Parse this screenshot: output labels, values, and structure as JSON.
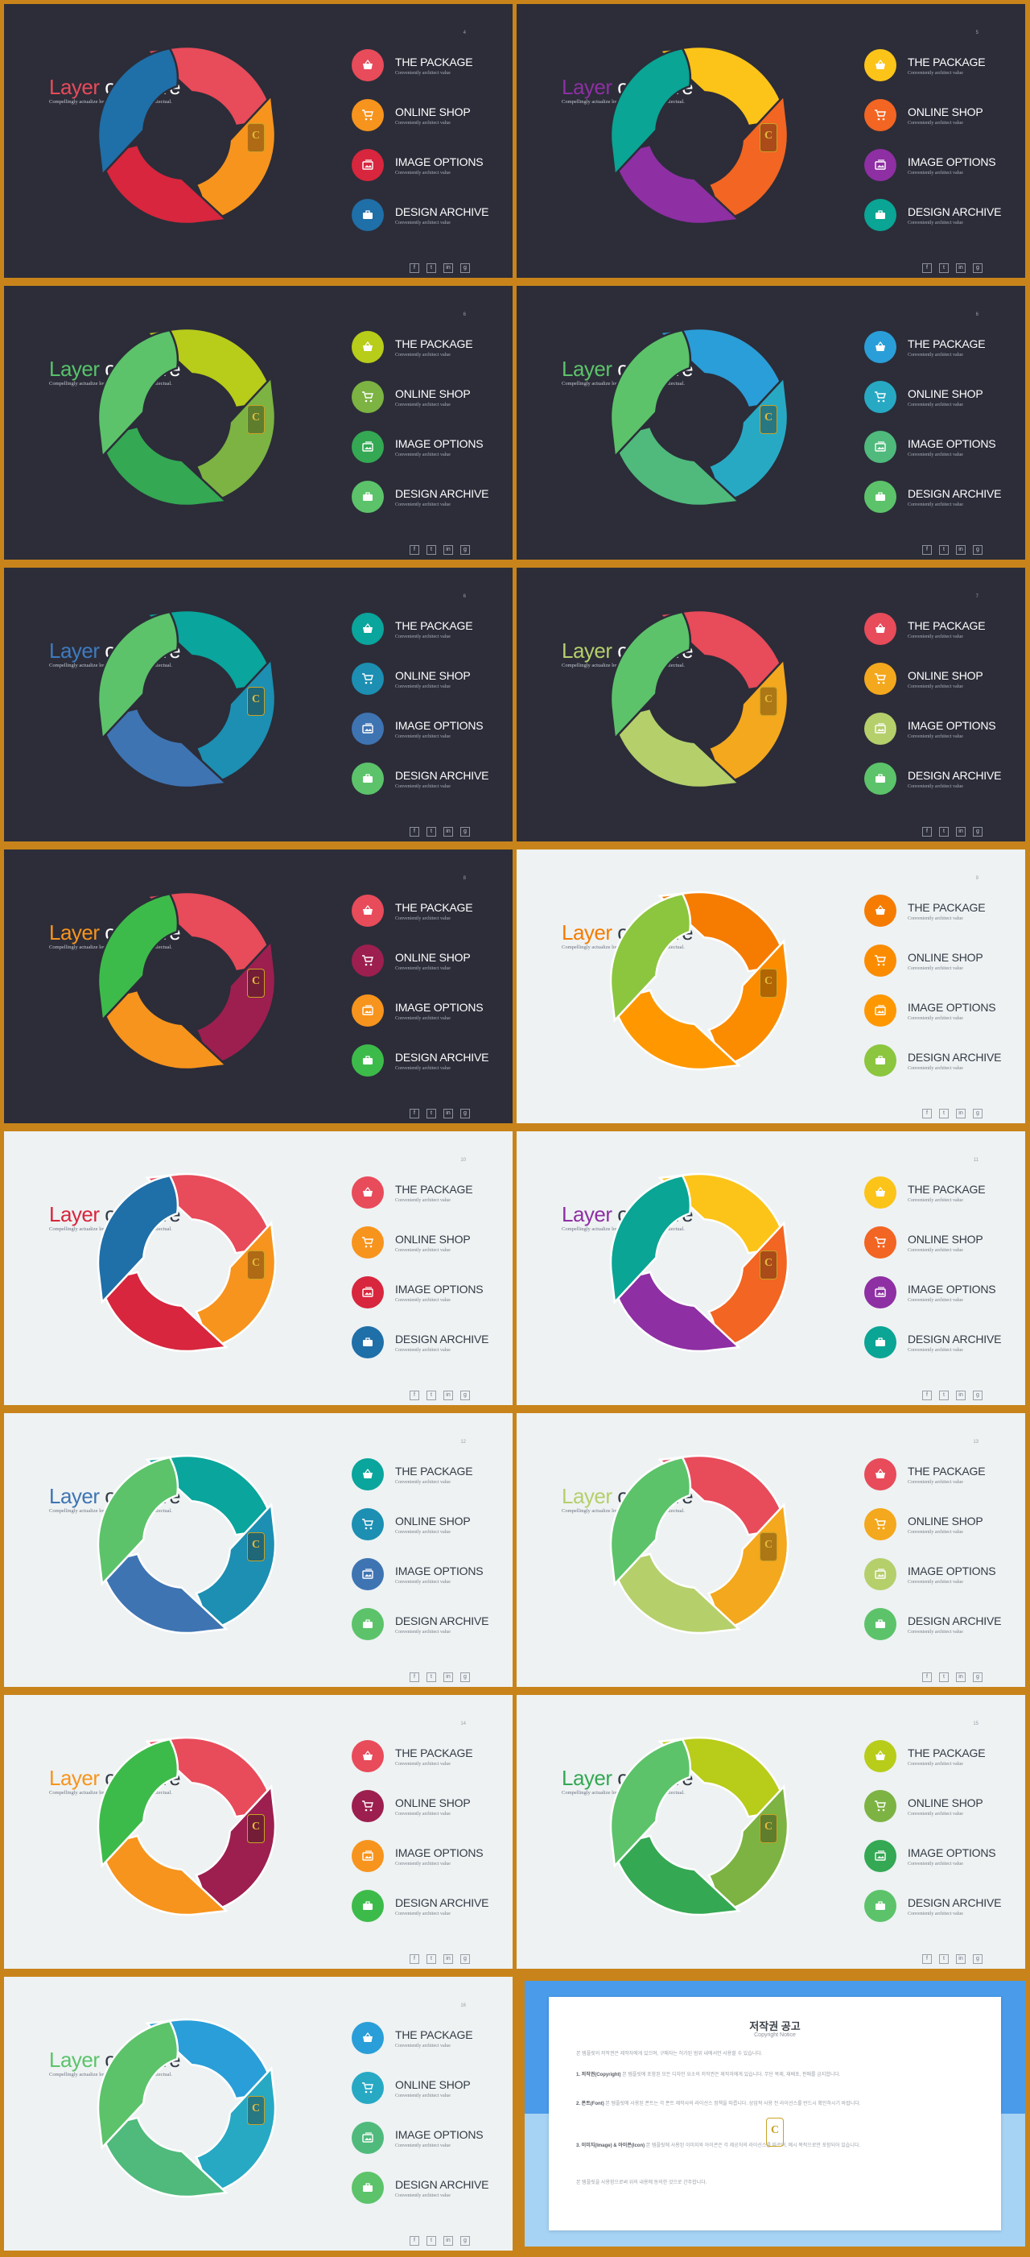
{
  "title_part1": "Layer",
  "title_part2": "of serive",
  "subtitle": "Compellingly actualize long-term high-impact intellectual.",
  "items": [
    {
      "label": "THE PACKAGE",
      "sub": "Conveniently architect value",
      "icon": "basket-icon"
    },
    {
      "label": "ONLINE SHOP",
      "sub": "Conveniently architect value",
      "icon": "cart-icon"
    },
    {
      "label": "IMAGE OPTIONS",
      "sub": "Conveniently architect value",
      "icon": "image-icon"
    },
    {
      "label": "DESIGN ARCHIVE",
      "sub": "Conveniently architect value",
      "icon": "briefcase-icon"
    }
  ],
  "social": [
    "f",
    "t",
    "in",
    "g"
  ],
  "badge": "C",
  "slides": [
    {
      "num": "4",
      "theme": "dark",
      "title_color": "#e84b5a",
      "colors": [
        "#e84b5a",
        "#f7941d",
        "#d7263d",
        "#1f6fa8"
      ]
    },
    {
      "num": "5",
      "theme": "dark",
      "title_color": "#8e2fa3",
      "colors": [
        "#fcc419",
        "#f26522",
        "#8e2fa3",
        "#0aa594"
      ]
    },
    {
      "num": "6",
      "theme": "dark",
      "title_color": "#57c26a",
      "colors": [
        "#b8cc1a",
        "#7cb342",
        "#34a853",
        "#5cc36a"
      ]
    },
    {
      "num": "6",
      "theme": "dark",
      "title_color": "#5cc36a",
      "colors": [
        "#2a9ed8",
        "#27a9c4",
        "#4fba7c",
        "#5cc36a"
      ]
    },
    {
      "num": "6",
      "theme": "dark",
      "title_color": "#3f7bbf",
      "colors": [
        "#0aa59c",
        "#1c8fb2",
        "#3f74b3",
        "#5cc36a"
      ]
    },
    {
      "num": "7",
      "theme": "dark",
      "title_color": "#b5cf6b",
      "colors": [
        "#e84b5a",
        "#f4a81d",
        "#b5cf6b",
        "#5cc36a"
      ]
    },
    {
      "num": "8",
      "theme": "dark",
      "title_color": "#f7941d",
      "colors": [
        "#e84b5a",
        "#9c1f4f",
        "#f7941d",
        "#3dbb4a"
      ]
    },
    {
      "num": "9",
      "theme": "light",
      "title_color": "#f57c00",
      "colors": [
        "#f57c00",
        "#fb8c00",
        "#ff9800",
        "#8bc63e"
      ]
    },
    {
      "num": "10",
      "theme": "light",
      "title_color": "#d7263d",
      "colors": [
        "#e84b5a",
        "#f7941d",
        "#d7263d",
        "#1f6fa8"
      ]
    },
    {
      "num": "11",
      "theme": "light",
      "title_color": "#8e2fa3",
      "colors": [
        "#fcc419",
        "#f26522",
        "#8e2fa3",
        "#0aa594"
      ]
    },
    {
      "num": "12",
      "theme": "light",
      "title_color": "#3f74b3",
      "colors": [
        "#0aa59c",
        "#1c8fb2",
        "#3f74b3",
        "#5cc36a"
      ]
    },
    {
      "num": "13",
      "theme": "light",
      "title_color": "#b5cf6b",
      "colors": [
        "#e84b5a",
        "#f4a81d",
        "#b5cf6b",
        "#5cc36a"
      ]
    },
    {
      "num": "14",
      "theme": "light",
      "title_color": "#f7941d",
      "colors": [
        "#e84b5a",
        "#9c1f4f",
        "#f7941d",
        "#3dbb4a"
      ]
    },
    {
      "num": "15",
      "theme": "light",
      "title_color": "#34a853",
      "colors": [
        "#b8cc1a",
        "#7cb342",
        "#34a853",
        "#5cc36a"
      ]
    },
    {
      "num": "16",
      "theme": "light",
      "title_color": "#5cc36a",
      "colors": [
        "#2a9ed8",
        "#27a9c4",
        "#4fba7c",
        "#5cc36a"
      ]
    }
  ],
  "notice": {
    "title": "저작권 공고",
    "subtitle": "Copyright Notice",
    "intro": "본 템플릿의 저작권은 제작자에게 있으며, 구매자는 허가된 범위 내에서만 사용할 수 있습니다.",
    "p1_head": "1. 저작권(Copyright)",
    "p1": "본 템플릿에 포함된 모든 디자인 요소의 저작권은 제작자에게 있습니다. 무단 복제, 재배포, 판매를 금지합니다.",
    "p2_head": "2. 폰트(Font)",
    "p2": "본 템플릿에 사용된 폰트는 각 폰트 제작사의 라이선스 정책을 따릅니다. 상업적 사용 전 라이선스를 반드시 확인하시기 바랍니다.",
    "p3_head": "3. 이미지(Image) & 아이콘(Icon)",
    "p3": "본 템플릿에 사용된 이미지와 아이콘은 각 제공처의 라이선스를 따르며, 예시 목적으로만 포함되어 있습니다.",
    "outro": "본 템플릿을 사용함으로써 위의 내용에 동의한 것으로 간주합니다."
  }
}
